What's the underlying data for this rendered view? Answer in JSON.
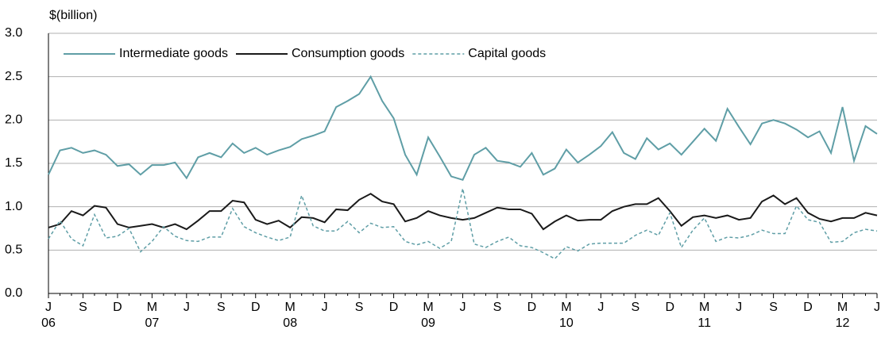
{
  "chart_data": {
    "type": "line",
    "y_axis_label": "$(billion)",
    "categories": [
      "J",
      null,
      null,
      "S",
      null,
      null,
      "D",
      null,
      null,
      "M",
      null,
      null,
      "J",
      null,
      null,
      "S",
      null,
      null,
      "D",
      null,
      null,
      "M",
      null,
      null,
      "J",
      null,
      null,
      "S",
      null,
      null,
      "D",
      null,
      null,
      "M",
      null,
      null,
      "J",
      null,
      null,
      "S",
      null,
      null,
      "D",
      null,
      null,
      "M",
      null,
      null,
      "J",
      null,
      null,
      "S",
      null,
      null,
      "D",
      null,
      null,
      "M",
      null,
      null,
      "J",
      null,
      null,
      "S",
      null,
      null,
      "D",
      null,
      null,
      "M",
      null,
      null,
      "J"
    ],
    "category_years": [
      "06",
      null,
      null,
      null,
      null,
      null,
      null,
      null,
      null,
      "07",
      null,
      null,
      null,
      null,
      null,
      null,
      null,
      null,
      null,
      null,
      null,
      "08",
      null,
      null,
      null,
      null,
      null,
      null,
      null,
      null,
      null,
      null,
      null,
      "09",
      null,
      null,
      null,
      null,
      null,
      null,
      null,
      null,
      null,
      null,
      null,
      "10",
      null,
      null,
      null,
      null,
      null,
      null,
      null,
      null,
      null,
      null,
      null,
      "11",
      null,
      null,
      null,
      null,
      null,
      null,
      null,
      null,
      null,
      null,
      null,
      "12",
      null,
      null,
      null
    ],
    "series": [
      {
        "name": "Intermediate goods",
        "color": "#5f9ea6",
        "dash": false,
        "values": [
          1.37,
          1.65,
          1.68,
          1.62,
          1.65,
          1.6,
          1.47,
          1.49,
          1.37,
          1.48,
          1.48,
          1.51,
          1.33,
          1.57,
          1.62,
          1.57,
          1.73,
          1.62,
          1.68,
          1.6,
          1.65,
          1.69,
          1.78,
          1.82,
          1.87,
          2.15,
          2.22,
          2.3,
          2.5,
          2.22,
          2.02,
          1.6,
          1.37,
          1.8,
          1.58,
          1.35,
          1.31,
          1.6,
          1.68,
          1.53,
          1.51,
          1.46,
          1.62,
          1.37,
          1.44,
          1.66,
          1.51,
          1.6,
          1.7,
          1.86,
          1.62,
          1.55,
          1.79,
          1.66,
          1.73,
          1.6,
          1.75,
          1.9,
          1.76,
          2.13,
          1.92,
          1.72,
          1.96,
          2.0,
          1.96,
          1.89,
          1.8,
          1.87,
          1.62,
          2.15,
          1.53,
          1.93,
          1.84
        ]
      },
      {
        "name": "Consumption goods",
        "color": "#1a1a1a",
        "dash": false,
        "values": [
          0.76,
          0.8,
          0.95,
          0.9,
          1.01,
          0.99,
          0.8,
          0.76,
          0.78,
          0.8,
          0.76,
          0.8,
          0.74,
          0.84,
          0.95,
          0.95,
          1.07,
          1.05,
          0.85,
          0.8,
          0.84,
          0.76,
          0.88,
          0.87,
          0.82,
          0.97,
          0.96,
          1.08,
          1.15,
          1.06,
          1.03,
          0.83,
          0.87,
          0.95,
          0.9,
          0.87,
          0.85,
          0.87,
          0.93,
          0.99,
          0.97,
          0.97,
          0.92,
          0.74,
          0.83,
          0.9,
          0.84,
          0.85,
          0.85,
          0.95,
          1.0,
          1.03,
          1.03,
          1.1,
          0.95,
          0.78,
          0.88,
          0.9,
          0.87,
          0.9,
          0.85,
          0.87,
          1.06,
          1.13,
          1.03,
          1.1,
          0.93,
          0.86,
          0.83,
          0.87,
          0.87,
          0.93,
          0.9
        ]
      },
      {
        "name": "Capital goods",
        "color": "#5f9ea6",
        "dash": true,
        "values": [
          0.63,
          0.84,
          0.63,
          0.55,
          0.91,
          0.64,
          0.66,
          0.75,
          0.48,
          0.6,
          0.77,
          0.66,
          0.61,
          0.6,
          0.65,
          0.65,
          0.98,
          0.77,
          0.7,
          0.65,
          0.61,
          0.65,
          1.13,
          0.78,
          0.72,
          0.72,
          0.83,
          0.7,
          0.81,
          0.76,
          0.77,
          0.6,
          0.56,
          0.6,
          0.52,
          0.6,
          1.21,
          0.57,
          0.53,
          0.6,
          0.65,
          0.55,
          0.53,
          0.47,
          0.4,
          0.54,
          0.49,
          0.57,
          0.58,
          0.58,
          0.58,
          0.67,
          0.73,
          0.67,
          0.93,
          0.53,
          0.73,
          0.87,
          0.6,
          0.65,
          0.64,
          0.67,
          0.73,
          0.69,
          0.69,
          1.01,
          0.85,
          0.82,
          0.59,
          0.6,
          0.7,
          0.74,
          0.72
        ]
      }
    ],
    "ylim": [
      0,
      3
    ],
    "yticks": [
      {
        "value": 0,
        "label": "0.0"
      },
      0.5,
      {
        "value": 1,
        "label": "1.0"
      },
      1.5,
      {
        "value": 2,
        "label": "2.0"
      },
      2.5,
      {
        "value": 3,
        "label": "3.0"
      }
    ],
    "grid": true,
    "legend": "top"
  }
}
